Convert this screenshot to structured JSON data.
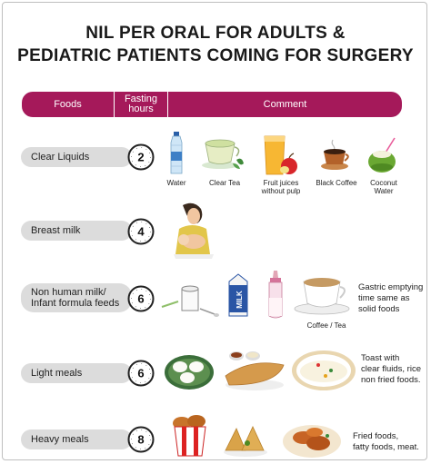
{
  "title": {
    "line1": "NIL PER ORAL FOR ADULTS &",
    "line2": "PEDIATRIC PATIENTS COMING FOR SURGERY"
  },
  "header": {
    "foods": "Foods",
    "fasting_line1": "Fasting",
    "fasting_line2": "hours",
    "comment": "Comment"
  },
  "rows": [
    {
      "food": "Clear Liquids",
      "hours": "2",
      "items": [
        "Water",
        "Clear Tea",
        "Fruit juices",
        "without pulp",
        "Black Coffee",
        "Coconut",
        "Water"
      ]
    },
    {
      "food": "Breast milk",
      "hours": "4"
    },
    {
      "food_line1": "Non human milk/",
      "food_line2": "Infant formula feeds",
      "hours": "6",
      "caption": "Coffee / Tea",
      "note": [
        "Gastric emptying",
        "time same as",
        "solid foods"
      ]
    },
    {
      "food": "Light meals",
      "hours": "6",
      "note": [
        "Toast with",
        "clear fluids, rice",
        "non fried foods."
      ]
    },
    {
      "food": "Heavy meals",
      "hours": "8",
      "note": [
        "Fried foods,",
        "fatty foods, meat."
      ]
    }
  ],
  "colors": {
    "accent": "#a5195a",
    "pill": "#dcdcdc"
  }
}
